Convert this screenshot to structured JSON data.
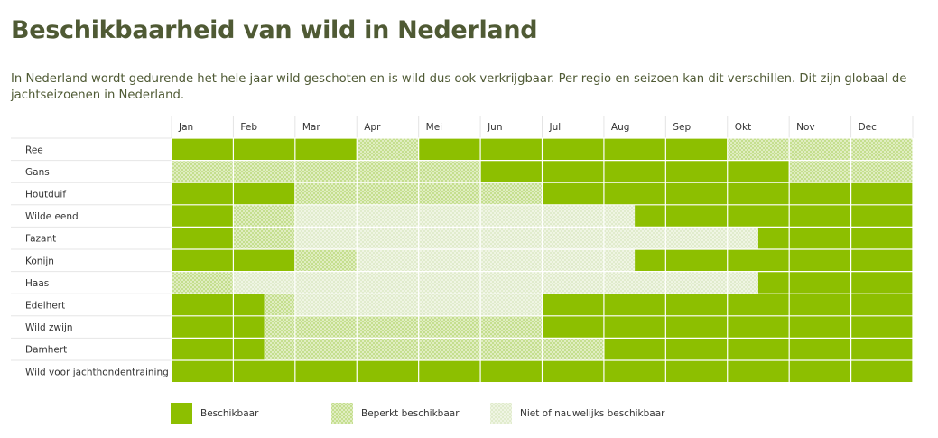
{
  "title": "Beschikbaarheid van wild in Nederland",
  "intro": "In Nederland wordt gedurende het hele jaar wild geschoten en is wild dus ook verkrijgbaar. Per regio en seizoen kan dit verschillen. Dit zijn globaal de jachtseizoenen in Nederland.",
  "colors": {
    "beschikbaar": "#8dbf00",
    "beperkt_base": "#b9d97a",
    "beperkt_hatch": "#e3efc6",
    "niet_base": "#dbe8c4",
    "niet_hatch": "#f1f6e6",
    "text": "#4f5a34"
  },
  "chart_data": {
    "type": "table",
    "months": [
      "Jan",
      "Feb",
      "Mar",
      "Apr",
      "Mei",
      "Jun",
      "Jul",
      "Aug",
      "Sep",
      "Okt",
      "Nov",
      "Dec"
    ],
    "status_codes": {
      "B": "Beschikbaar",
      "P": "Beperkt beschikbaar",
      "N": "Niet of nauwelijks beschikbaar"
    },
    "rows": [
      {
        "name": "Ree",
        "segments": [
          [
            0,
            3,
            "B"
          ],
          [
            3,
            4,
            "P"
          ],
          [
            4,
            9,
            "B"
          ],
          [
            9,
            12,
            "P"
          ]
        ]
      },
      {
        "name": "Gans",
        "segments": [
          [
            0,
            5,
            "P"
          ],
          [
            5,
            10,
            "B"
          ],
          [
            10,
            12,
            "P"
          ]
        ]
      },
      {
        "name": "Houtduif",
        "segments": [
          [
            0,
            2,
            "B"
          ],
          [
            2,
            6,
            "P"
          ],
          [
            6,
            12,
            "B"
          ]
        ]
      },
      {
        "name": "Wilde eend",
        "segments": [
          [
            0,
            1,
            "B"
          ],
          [
            1,
            2,
            "P"
          ],
          [
            2,
            7.5,
            "N"
          ],
          [
            7.5,
            12,
            "B"
          ]
        ]
      },
      {
        "name": "Fazant",
        "segments": [
          [
            0,
            1,
            "B"
          ],
          [
            1,
            2,
            "P"
          ],
          [
            2,
            9.5,
            "N"
          ],
          [
            9.5,
            12,
            "B"
          ]
        ]
      },
      {
        "name": "Konijn",
        "segments": [
          [
            0,
            2,
            "B"
          ],
          [
            2,
            3,
            "P"
          ],
          [
            3,
            7.5,
            "N"
          ],
          [
            7.5,
            12,
            "B"
          ]
        ]
      },
      {
        "name": "Haas",
        "segments": [
          [
            0,
            1,
            "P"
          ],
          [
            1,
            9.5,
            "N"
          ],
          [
            9.5,
            12,
            "B"
          ]
        ]
      },
      {
        "name": "Edelhert",
        "segments": [
          [
            0,
            1.5,
            "B"
          ],
          [
            1.5,
            2,
            "P"
          ],
          [
            2,
            6,
            "N"
          ],
          [
            6,
            12,
            "B"
          ]
        ]
      },
      {
        "name": "Wild zwijn",
        "segments": [
          [
            0,
            1.5,
            "B"
          ],
          [
            1.5,
            6,
            "P"
          ],
          [
            6,
            12,
            "B"
          ]
        ]
      },
      {
        "name": "Damhert",
        "segments": [
          [
            0,
            1.5,
            "B"
          ],
          [
            1.5,
            7,
            "P"
          ],
          [
            7,
            12,
            "B"
          ]
        ]
      },
      {
        "name": "Wild voor jachthondentraining",
        "segments": [
          [
            0,
            12,
            "B"
          ]
        ]
      }
    ]
  },
  "legend": [
    {
      "key": "B",
      "label": "Beschikbaar"
    },
    {
      "key": "P",
      "label": "Beperkt beschikbaar"
    },
    {
      "key": "N",
      "label": "Niet of nauwelijks beschikbaar"
    }
  ]
}
